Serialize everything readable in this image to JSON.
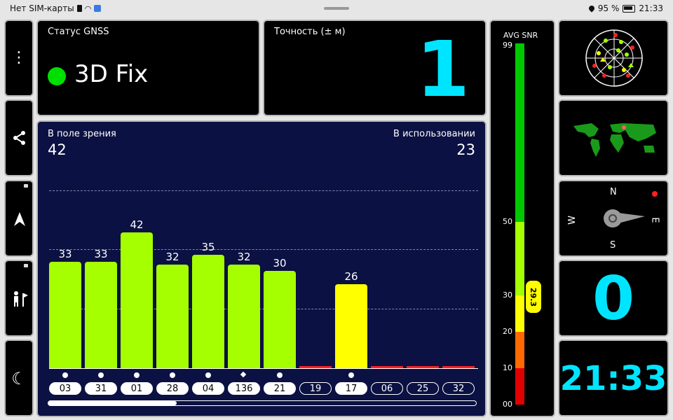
{
  "status_bar": {
    "carrier": "Нет SIM-карты",
    "battery": "95 %",
    "time": "21:33"
  },
  "gnss": {
    "title": "Статус GNSS",
    "fix": "3D Fix",
    "indicator_color": "#00e000"
  },
  "accuracy": {
    "title": "Точность (± м)",
    "value": "1"
  },
  "satellites": {
    "in_view_label": "В поле зрения",
    "in_view": "42",
    "in_use_label": "В использовании",
    "in_use": "23",
    "ymax": 55,
    "bars": [
      {
        "id": "03",
        "snr": 33,
        "label": "33",
        "color": "#a6ff00",
        "marker": "dot",
        "used": true
      },
      {
        "id": "31",
        "snr": 33,
        "label": "33",
        "color": "#a6ff00",
        "marker": "dot",
        "used": true
      },
      {
        "id": "01",
        "snr": 42,
        "label": "42",
        "color": "#a6ff00",
        "marker": "dot",
        "used": true
      },
      {
        "id": "28",
        "snr": 32,
        "label": "32",
        "color": "#a6ff00",
        "marker": "dot",
        "used": true
      },
      {
        "id": "04",
        "snr": 35,
        "label": "35",
        "color": "#a6ff00",
        "marker": "dot",
        "used": true
      },
      {
        "id": "136",
        "snr": 32,
        "label": "32",
        "color": "#a6ff00",
        "marker": "diamond",
        "used": true
      },
      {
        "id": "21",
        "snr": 30,
        "label": "30",
        "color": "#a6ff00",
        "marker": "dot",
        "used": true
      },
      {
        "id": "19",
        "snr": 0,
        "label": "",
        "color": "#ff2020",
        "marker": "none",
        "used": false
      },
      {
        "id": "17",
        "snr": 26,
        "label": "26",
        "color": "#ffff00",
        "marker": "dot",
        "used": true
      },
      {
        "id": "06",
        "snr": 0,
        "label": "",
        "color": "#ff2020",
        "marker": "none",
        "used": false
      },
      {
        "id": "25",
        "snr": 0,
        "label": "",
        "color": "#ff2020",
        "marker": "none",
        "used": false
      },
      {
        "id": "32",
        "snr": 0,
        "label": "",
        "color": "#ff2020",
        "marker": "none",
        "used": false
      }
    ],
    "scroll_position": 0.3
  },
  "snr": {
    "title": "AVG SNR",
    "value": "29.3",
    "value_num": 29.3,
    "ticks": [
      "99",
      "50",
      "30",
      "20",
      "10",
      "00"
    ]
  },
  "compass": {
    "n": "N",
    "e": "E",
    "s": "S",
    "w": "W"
  },
  "speed": {
    "value": "0"
  },
  "clock": {
    "value": "21:33"
  },
  "icons": {
    "menu": "more-vertical-icon",
    "share": "share-icon",
    "nav": "navigation-arrow-icon",
    "hiker": "hiker-flag-icon",
    "night": "moon-icon",
    "radar": "sky-plot-icon",
    "map": "world-map-icon"
  }
}
